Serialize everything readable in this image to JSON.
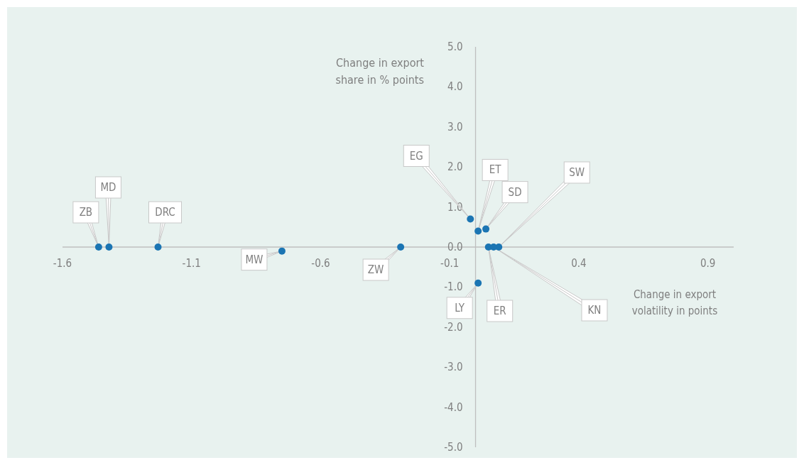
{
  "chart_data": {
    "type": "scatter",
    "xlabel": "Change in export\nvolatility in points",
    "ylabel": "Change in export\nshare in % points",
    "x": [
      -1.46,
      -1.42,
      -1.23,
      -0.75,
      -0.29,
      -0.02,
      0.01,
      0.04,
      0.09,
      0.01,
      0.05,
      0.07
    ],
    "series": [
      {
        "color": "#1b75b3",
        "values": [
          0,
          0,
          0,
          -0.1,
          0,
          0.7,
          0.4,
          0.45,
          0,
          -0.9,
          0,
          0
        ]
      }
    ],
    "annotations": [
      {
        "text": "ZB",
        "x": -1.46,
        "y": 0
      },
      {
        "text": "MD",
        "x": -1.42,
        "y": 0
      },
      {
        "text": "DRC",
        "x": -1.23,
        "y": 0
      },
      {
        "text": "MW",
        "x": -0.75,
        "y": -0.1
      },
      {
        "text": "ZW",
        "x": -0.29,
        "y": 0
      },
      {
        "text": "EG",
        "x": -0.02,
        "y": 0.7
      },
      {
        "text": "ET",
        "x": 0.01,
        "y": 0.4
      },
      {
        "text": "SD",
        "x": 0.04,
        "y": 0.45
      },
      {
        "text": "SW",
        "x": 0.09,
        "y": 0
      },
      {
        "text": "LY",
        "x": 0.01,
        "y": -0.9
      },
      {
        "text": "ER",
        "x": 0.05,
        "y": 0
      },
      {
        "text": "KN",
        "x": 0.07,
        "y": 0
      }
    ],
    "xlim": [
      -1.6,
      1.0
    ],
    "xticks": [
      {
        "value": -1.6,
        "label": "-1.6"
      },
      {
        "value": -1.1,
        "label": "-1.1"
      },
      {
        "value": -0.6,
        "label": "-0.6"
      },
      {
        "value": -0.1,
        "label": "-0.1"
      },
      {
        "value": 0.4,
        "label": "0.4"
      },
      {
        "value": 0.9,
        "label": "0.9"
      }
    ],
    "ylim": [
      -5,
      5
    ],
    "yticks": [
      {
        "value": -5,
        "label": "-5.0"
      },
      {
        "value": -4,
        "label": "-4.0"
      },
      {
        "value": -3,
        "label": "-3.0"
      },
      {
        "value": -2,
        "label": "-2.0"
      },
      {
        "value": -1,
        "label": "-1.0"
      },
      {
        "value": 0,
        "label": "0.0"
      },
      {
        "value": 1,
        "label": "1.0"
      },
      {
        "value": 2,
        "label": "2.0"
      },
      {
        "value": 3,
        "label": "3.0"
      },
      {
        "value": 4,
        "label": "4.0"
      },
      {
        "value": 5,
        "label": "5.0"
      }
    ],
    "marker": "circle",
    "grid": false
  }
}
